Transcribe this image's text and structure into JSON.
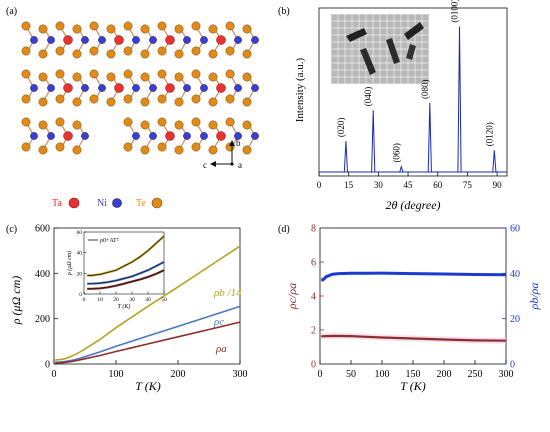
{
  "panels": {
    "a": "(a)",
    "b": "(b)",
    "c": "(c)",
    "d": "(d)"
  },
  "crystal": {
    "legend": [
      {
        "symbol": "Ta",
        "color": "#e8322e"
      },
      {
        "symbol": "Ni",
        "color": "#3a3fd0"
      },
      {
        "symbol": "Te",
        "color": "#e08a1a"
      }
    ],
    "axes": {
      "b": "b",
      "c": "c",
      "a": "a"
    }
  },
  "chart_data": [
    {
      "id": "b",
      "type": "line",
      "xlabel": "2θ (degree)",
      "ylabel": "Intensity (a.u.)",
      "xlim": [
        0,
        95
      ],
      "xticks": [
        0,
        15,
        30,
        45,
        60,
        75,
        90
      ],
      "peaks": [
        {
          "x": 13.6,
          "label": "(020)",
          "height": 0.17
        },
        {
          "x": 27.4,
          "label": "(040)",
          "height": 0.34
        },
        {
          "x": 41.6,
          "label": "(060)",
          "height": 0.03
        },
        {
          "x": 56.0,
          "label": "(080)",
          "height": 0.38
        },
        {
          "x": 71.0,
          "label": "(0100)",
          "height": 0.8
        },
        {
          "x": 88.6,
          "label": "(0120)",
          "height": 0.12
        }
      ],
      "series_color": "#1a2bb0"
    },
    {
      "id": "c",
      "type": "line",
      "xlabel": "T (K)",
      "ylabel": "ρ (μΩ cm)",
      "xlim": [
        0,
        300
      ],
      "ylim": [
        0,
        600
      ],
      "xticks": [
        0,
        100,
        200,
        300
      ],
      "yticks": [
        0,
        200,
        400,
        600
      ],
      "series": [
        {
          "name": "ρb /14",
          "color": "#b8a020",
          "T": [
            2,
            10,
            20,
            30,
            40,
            50,
            75,
            100,
            150,
            200,
            250,
            300
          ],
          "rho": [
            18,
            19,
            25,
            36,
            50,
            66,
            110,
            160,
            252,
            340,
            430,
            520
          ]
        },
        {
          "name": "ρc",
          "color": "#4a78c8",
          "T": [
            2,
            10,
            20,
            30,
            40,
            50,
            75,
            100,
            150,
            200,
            250,
            300
          ],
          "rho": [
            8,
            9,
            12,
            17,
            24,
            32,
            54,
            78,
            122,
            166,
            210,
            254
          ]
        },
        {
          "name": "ρa",
          "color": "#8a2f2a",
          "T": [
            2,
            10,
            20,
            30,
            40,
            50,
            75,
            100,
            150,
            200,
            250,
            300
          ],
          "rho": [
            4,
            5,
            8,
            12,
            17,
            23,
            38,
            55,
            88,
            120,
            152,
            185
          ]
        }
      ],
      "inset": {
        "legend": "ρ0+AT²",
        "xlabel": "T (K)",
        "ylabel": "ρ (μΩ cm)",
        "xlim": [
          0,
          50
        ],
        "ylim": [
          0,
          60
        ],
        "xticks": [
          0,
          10,
          20,
          30,
          40,
          50
        ],
        "yticks": [
          0,
          20,
          40,
          60
        ],
        "series": [
          {
            "color": "#b8a020",
            "T": [
              2,
              5,
              10,
              15,
              20,
              25,
              30,
              35,
              40,
              45,
              50
            ],
            "rho": [
              18,
              18,
              19,
              21,
              23,
              27,
              31,
              36,
              42,
              49,
              56
            ]
          },
          {
            "color": "#4a78c8",
            "T": [
              2,
              5,
              10,
              15,
              20,
              25,
              30,
              35,
              40,
              45,
              50
            ],
            "rho": [
              10,
              10,
              10.5,
              11.5,
              13,
              15,
              17,
              20,
              23,
              27,
              31
            ]
          },
          {
            "color": "#8a2f2a",
            "T": [
              2,
              5,
              10,
              15,
              20,
              25,
              30,
              35,
              40,
              45,
              50
            ],
            "rho": [
              5,
              5,
              5.5,
              6.5,
              8,
              10,
              12,
              14,
              16.5,
              19.5,
              23
            ]
          }
        ]
      }
    },
    {
      "id": "d",
      "type": "line",
      "xlabel": "T (K)",
      "ylabel_left": "ρc/ρa",
      "ylabel_right": "ρb/ρa",
      "xlim": [
        0,
        300
      ],
      "ylim_left": [
        0,
        8
      ],
      "ylim_right": [
        0,
        60
      ],
      "xticks": [
        0,
        50,
        100,
        150,
        200,
        250,
        300
      ],
      "yticks_left": [
        0,
        2,
        4,
        6,
        8
      ],
      "yticks_right": [
        0,
        20,
        40,
        60
      ],
      "series": [
        {
          "name": "ρc/ρa",
          "axis": "left",
          "color": "#8a2f2a",
          "T": [
            2,
            10,
            25,
            50,
            75,
            100,
            150,
            200,
            250,
            300
          ],
          "y": [
            1.63,
            1.64,
            1.65,
            1.64,
            1.6,
            1.56,
            1.5,
            1.44,
            1.39,
            1.37
          ]
        },
        {
          "name": "ρb/ρa",
          "axis": "right",
          "color": "#1a3ad0",
          "T": [
            2,
            5,
            10,
            20,
            30,
            50,
            75,
            100,
            150,
            200,
            250,
            300
          ],
          "y": [
            37,
            37.2,
            38.5,
            39.6,
            39.9,
            40.0,
            40.0,
            40.1,
            39.9,
            39.7,
            39.5,
            39.4
          ]
        }
      ]
    }
  ]
}
